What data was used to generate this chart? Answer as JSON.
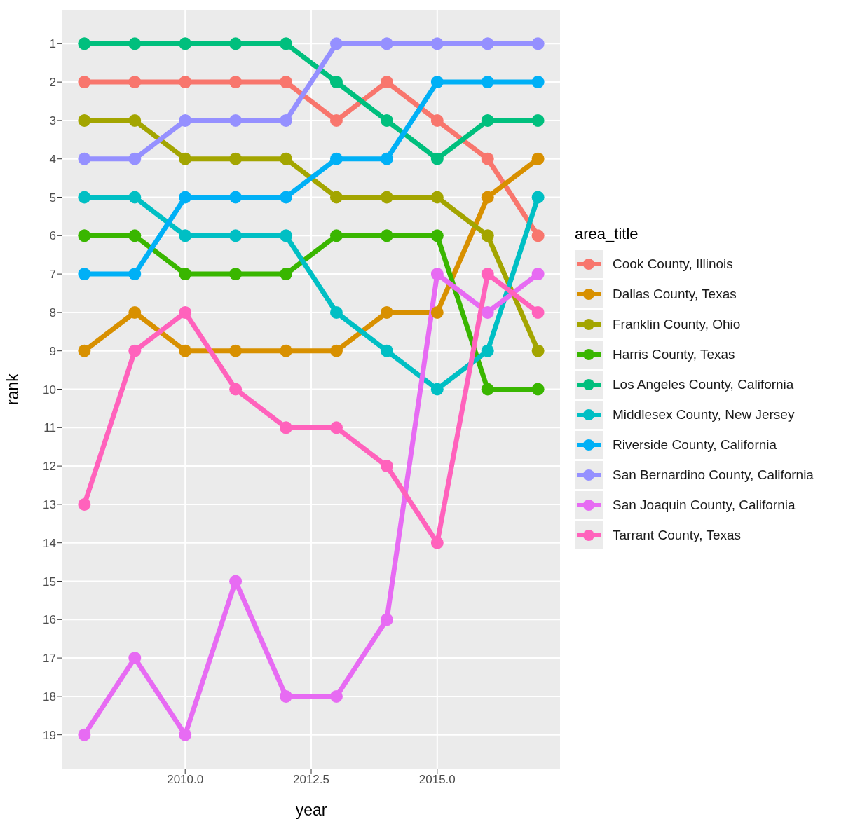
{
  "chart_data": {
    "type": "line",
    "xlabel": "year",
    "ylabel": "rank",
    "legend_title": "area_title",
    "legend": "right",
    "grid": true,
    "marker": "circle",
    "line_style": "solid",
    "x": [
      2008,
      2009,
      2010,
      2011,
      2012,
      2013,
      2014,
      2015,
      2016,
      2017
    ],
    "xlim": [
      2007.55,
      2017.45
    ],
    "xticks": [
      {
        "value": 2010,
        "label": "2010.0"
      },
      {
        "value": 2012.5,
        "label": "2012.5"
      },
      {
        "value": 2015,
        "label": "2015.0"
      }
    ],
    "ylim": [
      19.9,
      0.1
    ],
    "yticks": [
      1,
      2,
      3,
      4,
      5,
      6,
      7,
      8,
      9,
      10,
      11,
      12,
      13,
      14,
      15,
      16,
      17,
      18,
      19
    ],
    "series": [
      {
        "name": "Cook County, Illinois",
        "color": "#f8766d",
        "values": [
          2,
          2,
          2,
          2,
          2,
          3,
          2,
          3,
          4,
          6
        ]
      },
      {
        "name": "Dallas County, Texas",
        "color": "#d89000",
        "values": [
          9,
          8,
          9,
          9,
          9,
          9,
          8,
          8,
          5,
          4
        ]
      },
      {
        "name": "Franklin County, Ohio",
        "color": "#a3a500",
        "values": [
          3,
          3,
          4,
          4,
          4,
          5,
          5,
          5,
          6,
          9
        ]
      },
      {
        "name": "Harris County, Texas",
        "color": "#39b600",
        "values": [
          6,
          6,
          7,
          7,
          7,
          6,
          6,
          6,
          10,
          10
        ]
      },
      {
        "name": "Los Angeles County, California",
        "color": "#00bf7d",
        "values": [
          1,
          1,
          1,
          1,
          1,
          2,
          3,
          4,
          3,
          3
        ]
      },
      {
        "name": "Middlesex County, New Jersey",
        "color": "#00bfc4",
        "values": [
          5,
          5,
          6,
          6,
          6,
          8,
          9,
          10,
          9,
          5
        ]
      },
      {
        "name": "Riverside County, California",
        "color": "#00b0f6",
        "values": [
          7,
          7,
          5,
          5,
          5,
          4,
          4,
          2,
          2,
          2
        ]
      },
      {
        "name": "San Bernardino County, California",
        "color": "#9590ff",
        "values": [
          4,
          4,
          3,
          3,
          3,
          1,
          1,
          1,
          1,
          1
        ]
      },
      {
        "name": "San Joaquin County, California",
        "color": "#e76bf3",
        "values": [
          19,
          17,
          19,
          15,
          18,
          18,
          16,
          7,
          8,
          7
        ]
      },
      {
        "name": "Tarrant County, Texas",
        "color": "#ff62bc",
        "values": [
          13,
          9,
          8,
          10,
          11,
          11,
          12,
          14,
          7,
          8
        ]
      }
    ]
  }
}
